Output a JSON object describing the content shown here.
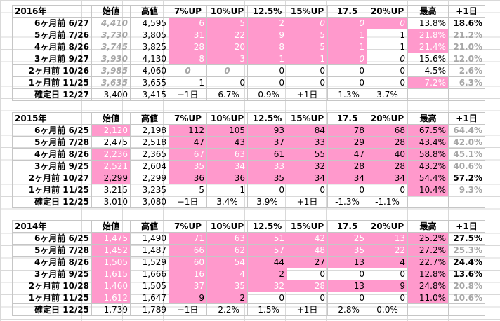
{
  "headers": [
    "始値",
    "高値",
    "7%UP",
    "10%UP",
    "12.5%",
    "15%UP",
    "17.5",
    "20%UP",
    "最高",
    "+1日"
  ],
  "blocks": [
    {
      "year": "2016年",
      "rows": [
        {
          "label": "6ヶ月前  6/27",
          "open": "4,410",
          "high": "4,595",
          "u7": "6",
          "u10": "5",
          "u125": "2",
          "u15": "0",
          "u175": "0",
          "u20": "0",
          "max": "13.8%",
          "d1": "18.6%"
        },
        {
          "label": "5ヶ月前  7/26",
          "open": "3,730",
          "high": "3,805",
          "u7": "31",
          "u10": "22",
          "u125": "9",
          "u15": "5",
          "u175": "1",
          "u20": "1",
          "max": "21.8%",
          "d1": "21.2%"
        },
        {
          "label": "4ヶ月前  8/26",
          "open": "3,745",
          "high": "3,825",
          "u7": "28",
          "u10": "20",
          "u125": "8",
          "u15": "5",
          "u175": "1",
          "u20": "1",
          "max": "21.4%",
          "d1": "21.0%"
        },
        {
          "label": "3ヶ月前  9/27",
          "open": "3,930",
          "high": "4,130",
          "u7": "8",
          "u10": "3",
          "u125": "1",
          "u15": "1",
          "u175": "0",
          "u20": "0",
          "max": "15.6%",
          "d1": "12.0%"
        },
        {
          "label": "2ヶ月前  10/26",
          "open": "3,985",
          "high": "4,060",
          "u7": "0",
          "u10": "0",
          "u125": "0",
          "u15": "0",
          "u175": "0",
          "u20": "0",
          "max": "4.5%",
          "d1": "2.6%"
        },
        {
          "label": "1ヶ月前  11/25",
          "open": "3,635",
          "high": "3,655",
          "u7": "1",
          "u10": "0",
          "u125": "0",
          "u15": "0",
          "u175": "0",
          "u20": "0",
          "max": "7.2%",
          "d1": "6.3%"
        },
        {
          "label": "確定日  12/27",
          "open": "3,400",
          "high": "3,415",
          "u7": "−1日",
          "u10": "-6.7%",
          "u125": "-0.9%",
          "u15": "+1日",
          "u175": "-1.3%",
          "u20": "3.7%",
          "max": "",
          "d1": ""
        }
      ]
    },
    {
      "year": "2015年",
      "rows": [
        {
          "label": "6ヶ月前  6/25",
          "open": "2,120",
          "high": "2,198",
          "u7": "112",
          "u10": "105",
          "u125": "93",
          "u15": "84",
          "u175": "78",
          "u20": "68",
          "max": "67.5%",
          "d1": "64.4%"
        },
        {
          "label": "5ヶ月前  7/28",
          "open": "2,475",
          "high": "2,518",
          "u7": "47",
          "u10": "43",
          "u125": "37",
          "u15": "33",
          "u175": "29",
          "u20": "28",
          "max": "43.4%",
          "d1": "42.0%"
        },
        {
          "label": "4ヶ月前  8/26",
          "open": "2,236",
          "high": "2,365",
          "u7": "67",
          "u10": "63",
          "u125": "61",
          "u15": "55",
          "u175": "47",
          "u20": "40",
          "max": "58.8%",
          "d1": "45.1%"
        },
        {
          "label": "3ヶ月前  9/25",
          "open": "2,521",
          "high": "2,604",
          "u7": "35",
          "u10": "34",
          "u125": "33",
          "u15": "32",
          "u175": "28",
          "u20": "28",
          "max": "43.2%",
          "d1": "40.6%"
        },
        {
          "label": "2ヶ月前  10/27",
          "open": "2,299",
          "high": "2,299",
          "u7": "36",
          "u10": "36",
          "u125": "35",
          "u15": "34",
          "u175": "34",
          "u20": "34",
          "max": "54.4%",
          "d1": "57.2%"
        },
        {
          "label": "1ヶ月前  11/25",
          "open": "3,215",
          "high": "3,235",
          "u7": "5",
          "u10": "1",
          "u125": "0",
          "u15": "0",
          "u175": "0",
          "u20": "0",
          "max": "10.4%",
          "d1": "9.3%"
        },
        {
          "label": "確定日  12/25",
          "open": "3,010",
          "high": "3,080",
          "u7": "−1日",
          "u10": "3.4%",
          "u125": "3.9%",
          "u15": "+1日",
          "u175": "-1.3%",
          "u20": "-1.1%",
          "max": "",
          "d1": ""
        }
      ]
    },
    {
      "year": "2014年",
      "rows": [
        {
          "label": "6ヶ月前  6/25",
          "open": "1,475",
          "high": "1,490",
          "u7": "71",
          "u10": "63",
          "u125": "51",
          "u15": "42",
          "u175": "25",
          "u20": "13",
          "max": "25.2%",
          "d1": "27.5%"
        },
        {
          "label": "5ヶ月前  7/28",
          "open": "1,452",
          "high": "1,487",
          "u7": "66",
          "u10": "62",
          "u125": "57",
          "u15": "48",
          "u175": "35",
          "u20": "22",
          "max": "27.2%",
          "d1": "25.3%"
        },
        {
          "label": "4ヶ月前  8/26",
          "open": "1,505",
          "high": "1,529",
          "u7": "60",
          "u10": "54",
          "u125": "44",
          "u15": "27",
          "u175": "13",
          "u20": "4",
          "max": "22.7%",
          "d1": "24.4%"
        },
        {
          "label": "3ヶ月前  9/25",
          "open": "1,615",
          "high": "1,666",
          "u7": "16",
          "u10": "4",
          "u125": "2",
          "u15": "0",
          "u175": "0",
          "u20": "0",
          "max": "12.8%",
          "d1": "13.6%"
        },
        {
          "label": "2ヶ月前  10/28",
          "open": "1,460",
          "high": "1,505",
          "u7": "37",
          "u10": "35",
          "u125": "32",
          "u15": "28",
          "u175": "13",
          "u20": "9",
          "max": "24.8%",
          "d1": "20.8%"
        },
        {
          "label": "1ヶ月前  11/25",
          "open": "1,612",
          "high": "1,647",
          "u7": "9",
          "u10": "2",
          "u125": "0",
          "u15": "0",
          "u175": "0",
          "u20": "0",
          "max": "11.0%",
          "d1": "10.6%"
        },
        {
          "label": "確定日  12/25",
          "open": "1,739",
          "high": "1,789",
          "u7": "−1日",
          "u10": "-2.2%",
          "u125": "-1.5%",
          "u15": "+1日",
          "u175": "-2.8%",
          "u20": "0.0%",
          "max": "",
          "d1": ""
        }
      ]
    }
  ]
}
